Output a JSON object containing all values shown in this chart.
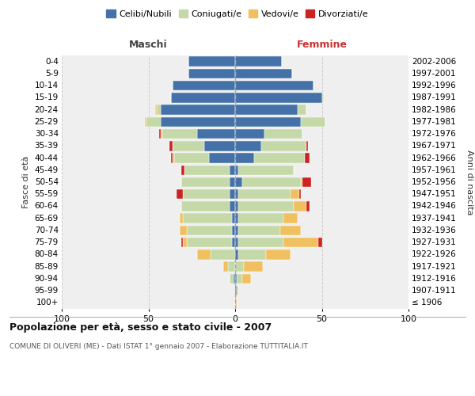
{
  "age_groups": [
    "100+",
    "95-99",
    "90-94",
    "85-89",
    "80-84",
    "75-79",
    "70-74",
    "65-69",
    "60-64",
    "55-59",
    "50-54",
    "45-49",
    "40-44",
    "35-39",
    "30-34",
    "25-29",
    "20-24",
    "15-19",
    "10-14",
    "5-9",
    "0-4"
  ],
  "birth_years": [
    "≤ 1906",
    "1907-1911",
    "1912-1916",
    "1917-1921",
    "1922-1926",
    "1927-1931",
    "1932-1936",
    "1937-1941",
    "1942-1946",
    "1947-1951",
    "1952-1956",
    "1957-1961",
    "1962-1966",
    "1967-1971",
    "1972-1976",
    "1977-1981",
    "1982-1986",
    "1987-1991",
    "1992-1996",
    "1997-2001",
    "2002-2006"
  ],
  "male_celibe": [
    0,
    0,
    1,
    0,
    0,
    2,
    2,
    2,
    3,
    3,
    3,
    3,
    15,
    18,
    22,
    43,
    43,
    37,
    36,
    27,
    27
  ],
  "male_coniugato": [
    0,
    0,
    2,
    4,
    14,
    26,
    26,
    28,
    28,
    27,
    28,
    26,
    20,
    18,
    20,
    8,
    2,
    0,
    0,
    0,
    0
  ],
  "male_vedovo": [
    0,
    0,
    0,
    3,
    8,
    2,
    4,
    2,
    0,
    0,
    0,
    0,
    1,
    0,
    1,
    1,
    1,
    0,
    0,
    0,
    0
  ],
  "male_divorziato": [
    0,
    0,
    0,
    0,
    0,
    1,
    0,
    0,
    0,
    4,
    0,
    2,
    1,
    2,
    1,
    0,
    0,
    0,
    0,
    0,
    0
  ],
  "female_celibe": [
    0,
    1,
    1,
    0,
    2,
    2,
    2,
    2,
    2,
    2,
    4,
    2,
    11,
    15,
    17,
    38,
    36,
    50,
    45,
    33,
    27
  ],
  "female_coniugato": [
    0,
    0,
    3,
    5,
    16,
    26,
    24,
    26,
    32,
    30,
    34,
    32,
    29,
    26,
    22,
    14,
    5,
    1,
    0,
    0,
    0
  ],
  "female_vedovo": [
    1,
    1,
    5,
    11,
    14,
    20,
    12,
    8,
    7,
    5,
    1,
    0,
    0,
    0,
    0,
    0,
    0,
    0,
    0,
    0,
    0
  ],
  "female_divorziato": [
    0,
    0,
    0,
    0,
    0,
    2,
    0,
    0,
    2,
    1,
    5,
    0,
    3,
    1,
    0,
    0,
    0,
    0,
    0,
    0,
    0
  ],
  "colors": {
    "celibe": "#4472a8",
    "coniugato": "#c5d9a8",
    "vedovo": "#f0c060",
    "divorziato": "#cc2222"
  },
  "legend_labels": [
    "Celibi/Nubili",
    "Coniugati/e",
    "Vedovi/e",
    "Divorziati/e"
  ],
  "title": "Popolazione per età, sesso e stato civile - 2007",
  "subtitle": "COMUNE DI OLIVERI (ME) - Dati ISTAT 1° gennaio 2007 - Elaborazione TUTTITALIA.IT",
  "ylabel_left": "Fasce di età",
  "ylabel_right": "Anni di nascita",
  "xlabel_left": "Maschi",
  "xlabel_right": "Femmine",
  "xlim": 100,
  "background_color": "#ffffff",
  "plot_bg": "#efefef",
  "grid_color": "#cccccc"
}
